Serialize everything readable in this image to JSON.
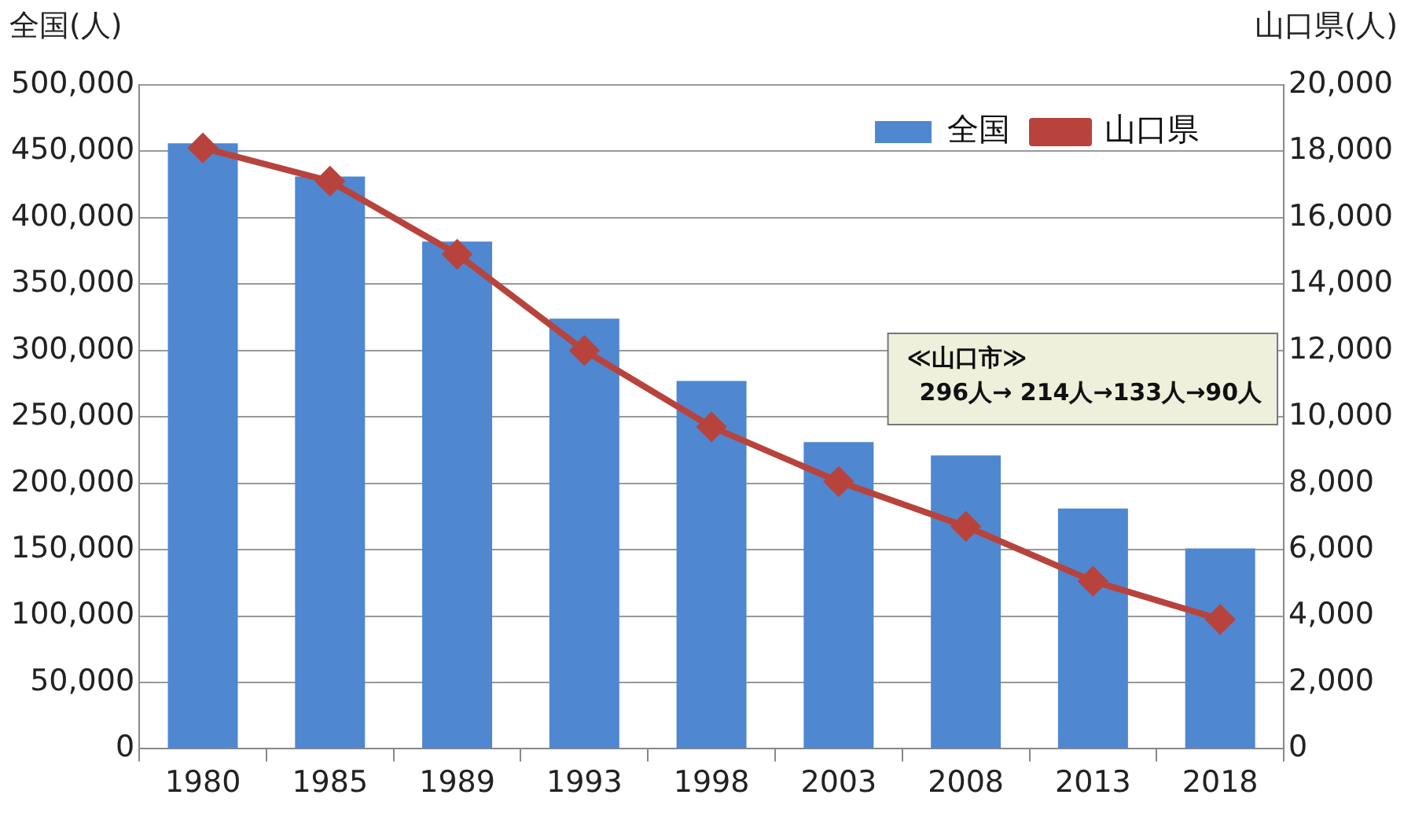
{
  "chart_data": {
    "type": "bar",
    "ylabel": "全国(人)",
    "y2label": "山口県(人)",
    "categories": [
      "1980",
      "1985",
      "1989",
      "1993",
      "1998",
      "2003",
      "2008",
      "2013",
      "2018"
    ],
    "series": [
      {
        "name": "全国",
        "color": "#4f87d0",
        "values": [
          456000,
          431000,
          382000,
          324000,
          277000,
          231000,
          221000,
          181000,
          151000
        ]
      },
      {
        "name": "山口県",
        "type": "line",
        "axis": "y2",
        "color": "#b8433d",
        "marker": "diamond",
        "values": [
          18100,
          17100,
          14900,
          12000,
          9700,
          8050,
          6700,
          5050,
          3900
        ]
      }
    ],
    "ylim": [
      0,
      500000
    ],
    "yticks": [
      0,
      {
        "value": 50000,
        "label": "50,000"
      },
      {
        "value": 100000,
        "label": "100,000"
      },
      {
        "value": 150000,
        "label": "150,000"
      },
      {
        "value": 200000,
        "label": "200,000"
      },
      {
        "value": 250000,
        "label": "250,000"
      },
      {
        "value": 300000,
        "label": "300,000"
      },
      {
        "value": 350000,
        "label": "350,000"
      },
      {
        "value": 400000,
        "label": "400,000"
      },
      {
        "value": 450000,
        "label": "450,000"
      },
      {
        "value": 500000,
        "label": "500,000"
      }
    ],
    "y2lim": [
      0,
      20000
    ],
    "y2ticks": [
      0,
      {
        "value": 2000,
        "label": "2,000"
      },
      {
        "value": 4000,
        "label": "4,000"
      },
      {
        "value": 6000,
        "label": "6,000"
      },
      {
        "value": 8000,
        "label": "8,000"
      },
      {
        "value": 10000,
        "label": "10,000"
      },
      {
        "value": 12000,
        "label": "12,000"
      },
      {
        "value": 14000,
        "label": "14,000"
      },
      {
        "value": 16000,
        "label": "16,000"
      },
      {
        "value": 18000,
        "label": "18,000"
      },
      {
        "value": 20000,
        "label": "20,000"
      }
    ],
    "grid": "y",
    "legend": "top right",
    "annotations": [
      "≪山口市≫",
      "296人→ 214人→133人→90人"
    ]
  }
}
